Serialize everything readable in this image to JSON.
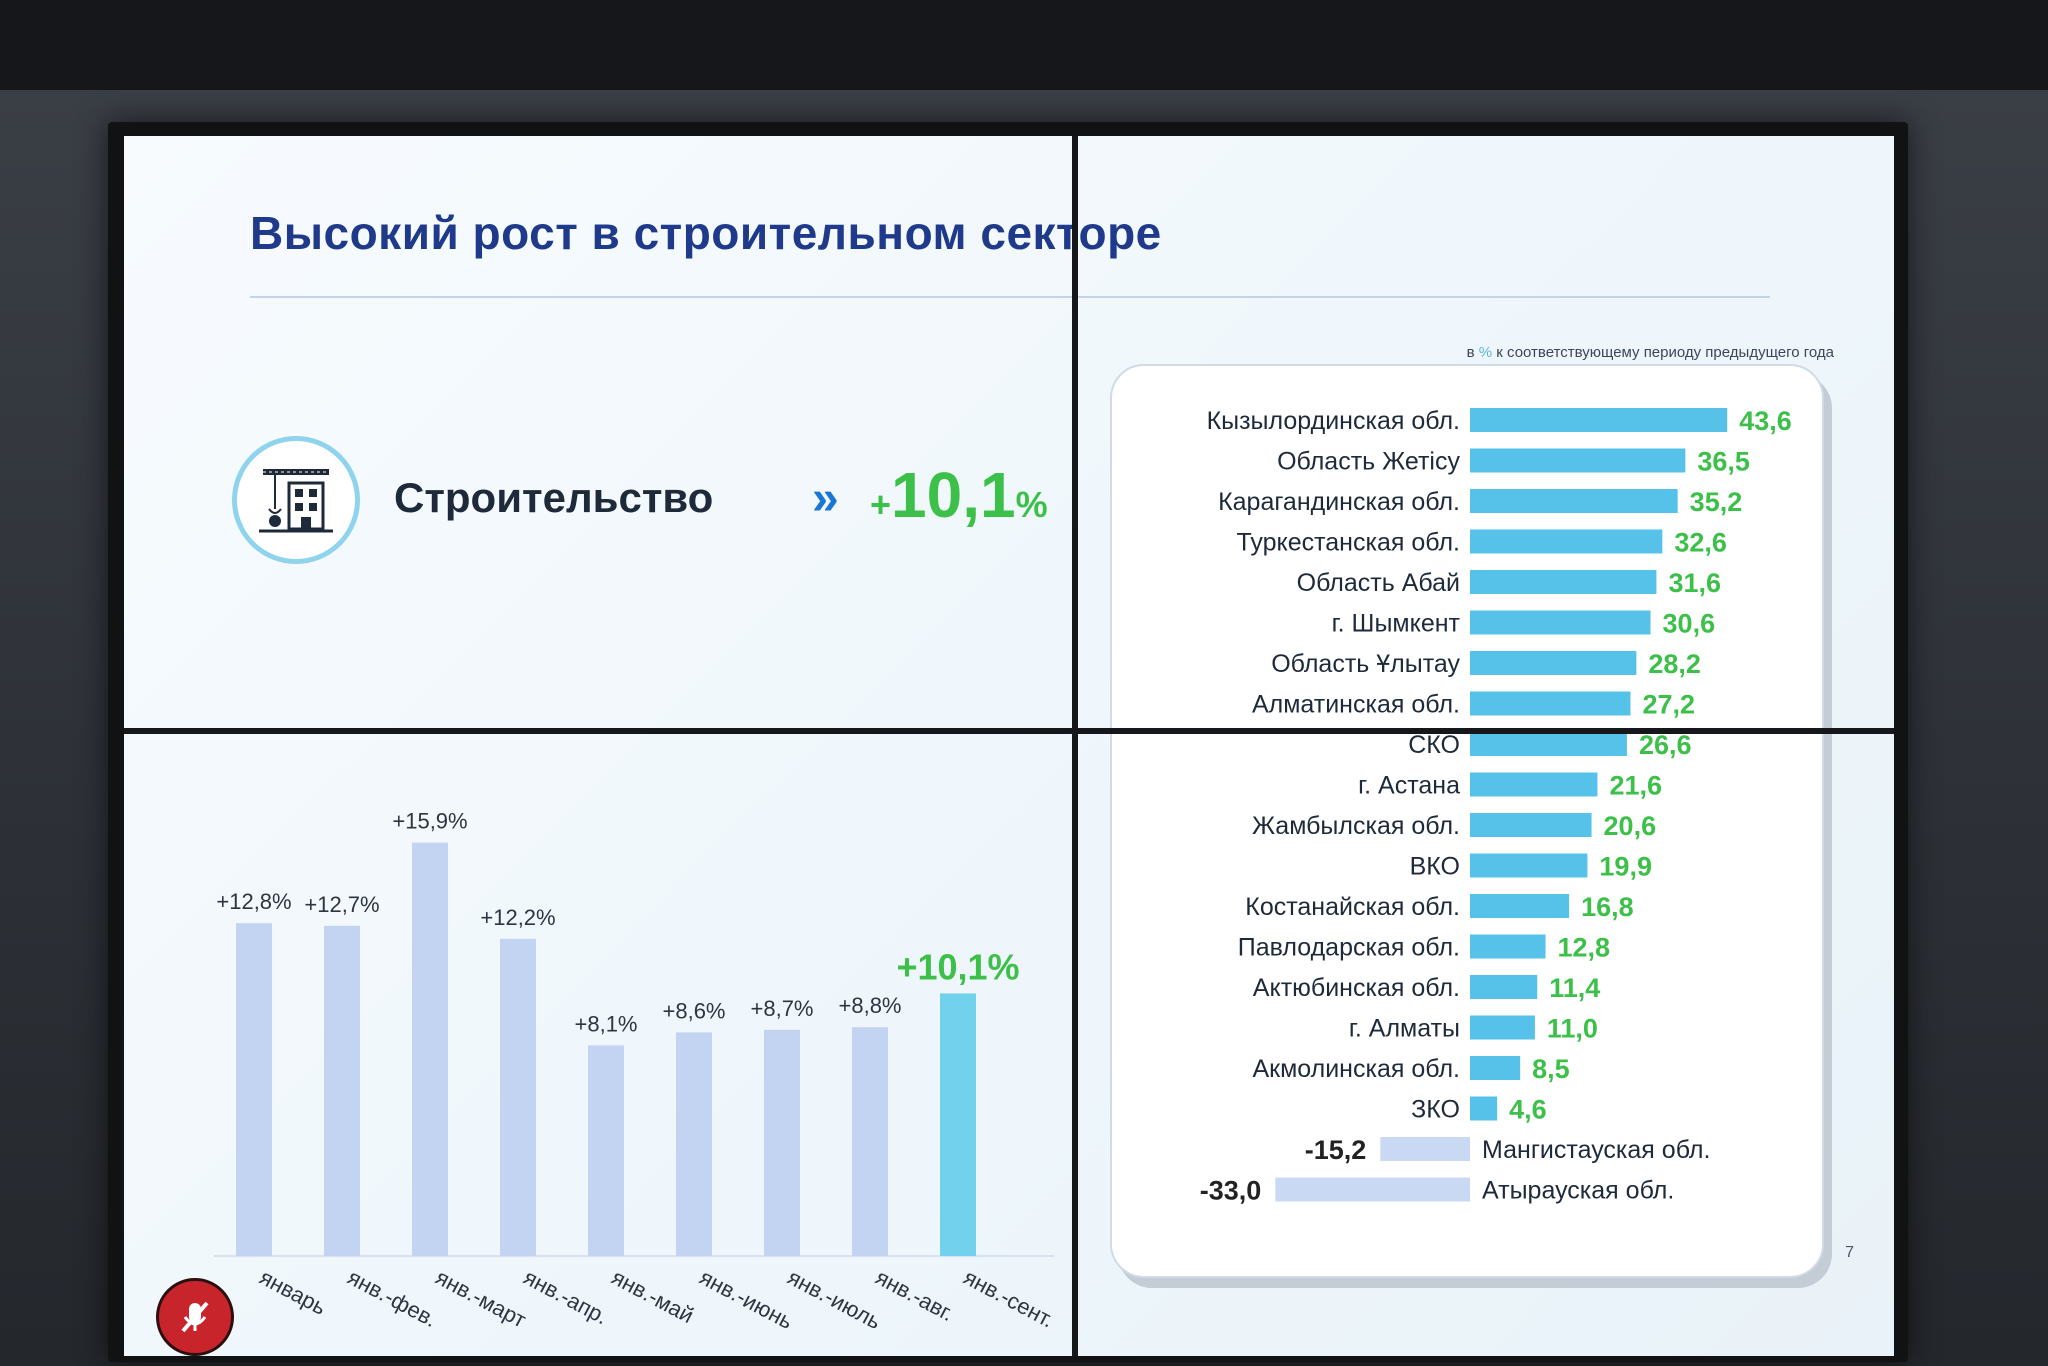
{
  "slide": {
    "title": "Высокий рост в строительном секторе",
    "note_pct": "%",
    "note_prefix": "в",
    "note_suffix": "к соответствующему периоду предыдущего года",
    "page_number": "7"
  },
  "kpi": {
    "label": "Строительство",
    "arrows": "»",
    "value": "10,1",
    "sign": "+",
    "unit": "%",
    "icon": "construction-crane-icon"
  },
  "chart_data": [
    {
      "type": "bar",
      "categories": [
        "январь",
        "янв.-фев.",
        "янв.-март",
        "янв.-апр.",
        "янв.-май",
        "янв.-июнь",
        "янв.-июль",
        "янв.-авг.",
        "янв.-сент."
      ],
      "values": [
        12.8,
        12.7,
        15.9,
        12.2,
        8.1,
        8.6,
        8.7,
        8.8,
        10.1
      ],
      "labels": [
        "+12,8%",
        "+12,7%",
        "+15,9%",
        "+12,2%",
        "+8,1%",
        "+8,6%",
        "+8,7%",
        "+8,8%",
        "+10,1%"
      ],
      "colors": {
        "default": "#c2d4f1",
        "highlight": "#72d1ec"
      },
      "highlight_index": 8
    },
    {
      "type": "bar",
      "orientation": "horizontal",
      "categories": [
        "Кызылординская обл.",
        "Область Жетісу",
        "Карагандинская обл.",
        "Туркестанская обл.",
        "Область Абай",
        "г. Шымкент",
        "Область Ұлытау",
        "Алматинская обл.",
        "СКО",
        "г. Астана",
        "Жамбылская обл.",
        "ВКО",
        "Костанайская обл.",
        "Павлодарская обл.",
        "Актюбинская обл.",
        "г. Алматы",
        "Акмолинская обл.",
        "ЗКО",
        "Мангистауская обл.",
        "Атырауская обл."
      ],
      "values": [
        43.6,
        36.5,
        35.2,
        32.6,
        31.6,
        30.6,
        28.2,
        27.2,
        26.6,
        21.6,
        20.6,
        19.9,
        16.8,
        12.8,
        11.4,
        11.0,
        8.5,
        4.6,
        -15.2,
        -33.0
      ],
      "labels": [
        "43,6",
        "36,5",
        "35,2",
        "32,6",
        "31,6",
        "30,6",
        "28,2",
        "27,2",
        "26,6",
        "21,6",
        "20,6",
        "19,9",
        "16,8",
        "12,8",
        "11,4",
        "11,0",
        "8,5",
        "4,6",
        "-15,2",
        "-33,0"
      ],
      "colors": {
        "positive": "#56c2ea",
        "negative": "#c9d9f3",
        "positive_label": "#3cc04a",
        "negative_label": "#222222"
      }
    }
  ]
}
